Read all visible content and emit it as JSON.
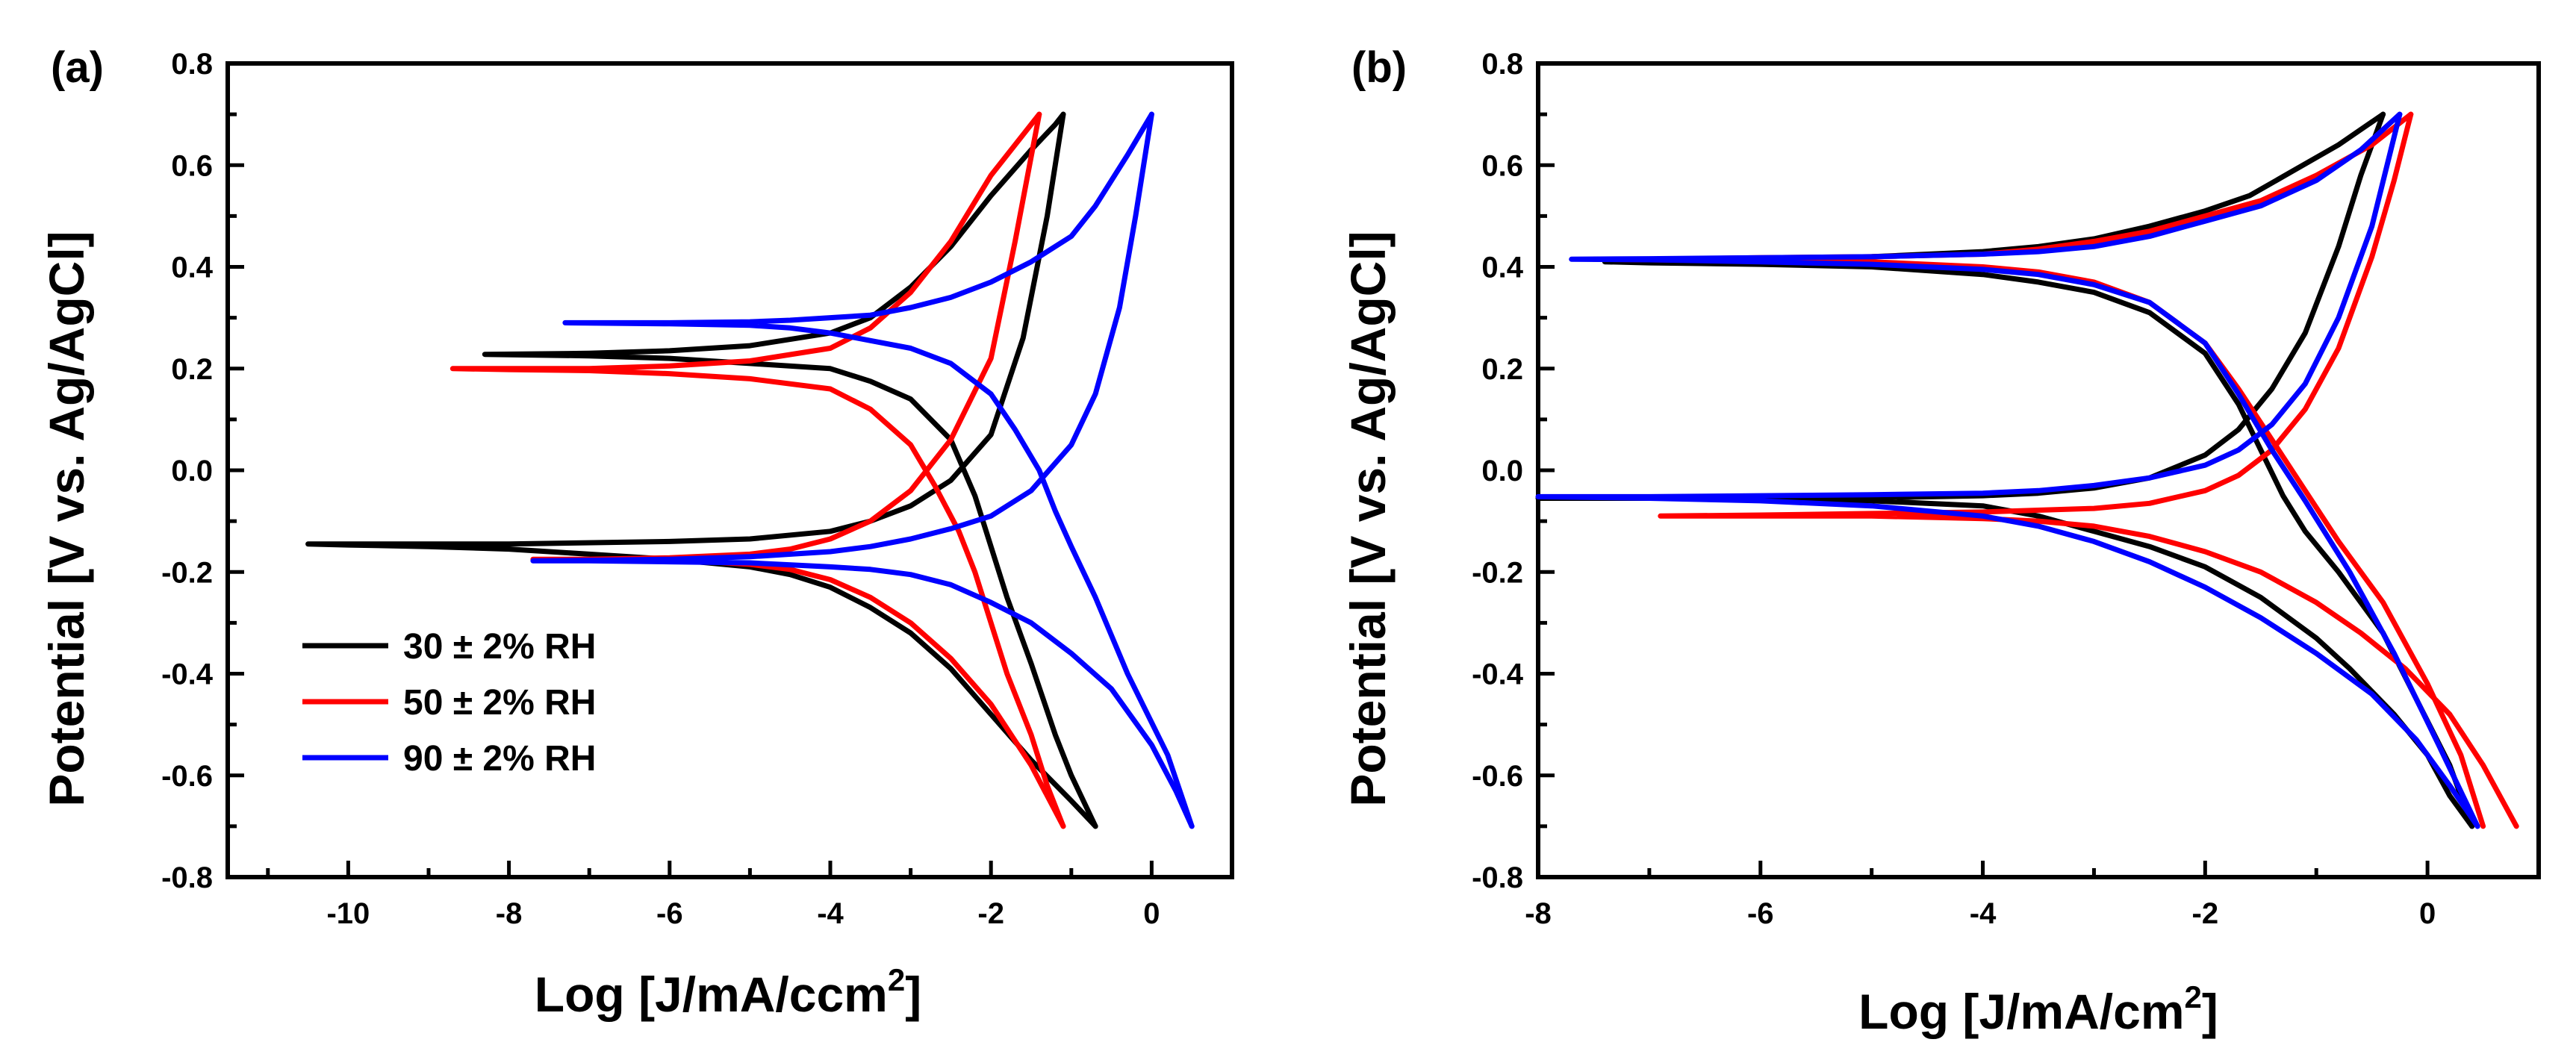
{
  "chart_data": [
    {
      "type": "line",
      "panel_label": "(a)",
      "xlabel": "Log [J/mA/ccm",
      "xlabel_sup": "2",
      "xlabel_end": "]",
      "ylabel": "Potential [V vs. Ag/AgCl]",
      "xlim": [
        -11.5,
        1
      ],
      "ylim": [
        -0.8,
        0.8
      ],
      "xticks": [
        -10,
        -8,
        -6,
        -4,
        -2,
        0
      ],
      "xtick_labels": [
        "-10",
        "-8",
        "-6",
        "-4",
        "-2",
        "0"
      ],
      "yticks": [
        -0.8,
        -0.6,
        -0.4,
        -0.2,
        0.0,
        0.2,
        0.4,
        0.6,
        0.8
      ],
      "ytick_labels": [
        "-0.8",
        "-0.6",
        "-0.4",
        "-0.2",
        "0.0",
        "0.2",
        "0.4",
        "0.6",
        "0.8"
      ],
      "legend": [
        {
          "label": "30 ± 2% RH",
          "color": "#000000"
        },
        {
          "label": "50 ± 2% RH",
          "color": "#ff0000"
        },
        {
          "label": "90 ± 2% RH",
          "color": "#0000ff"
        }
      ],
      "legend_position": "bottom-left",
      "series": [
        {
          "name": "30 ± 2% RH (forward)",
          "color": "#000000",
          "x": [
            -0.7,
            -1.0,
            -1.5,
            -2.0,
            -2.5,
            -3.0,
            -3.5,
            -4.0,
            -4.5,
            -5.0,
            -6.0,
            -7.0,
            -8.0,
            -9.0,
            -10.0,
            -10.5,
            -10.0,
            -8.0,
            -6.0,
            -5.0,
            -4.0,
            -3.5,
            -3.0,
            -2.5,
            -2.0,
            -1.6,
            -1.3,
            -1.1
          ],
          "y": [
            -0.7,
            -0.65,
            -0.57,
            -0.48,
            -0.39,
            -0.32,
            -0.27,
            -0.23,
            -0.205,
            -0.19,
            -0.175,
            -0.165,
            -0.155,
            -0.15,
            -0.147,
            -0.145,
            -0.145,
            -0.145,
            -0.14,
            -0.135,
            -0.12,
            -0.1,
            -0.07,
            -0.02,
            0.07,
            0.26,
            0.5,
            0.7
          ]
        },
        {
          "name": "30 ± 2% RH (reverse)",
          "color": "#000000",
          "x": [
            -1.1,
            -1.2,
            -1.5,
            -2.0,
            -2.5,
            -3.0,
            -3.5,
            -4.0,
            -5.0,
            -6.0,
            -7.0,
            -8.3,
            -7.0,
            -6.0,
            -5.0,
            -4.0,
            -3.5,
            -3.0,
            -2.5,
            -2.2,
            -2.0,
            -1.8,
            -1.5,
            -1.2,
            -1.0,
            -0.7
          ],
          "y": [
            0.7,
            0.68,
            0.63,
            0.54,
            0.44,
            0.36,
            0.3,
            0.27,
            0.245,
            0.235,
            0.23,
            0.228,
            0.225,
            0.22,
            0.21,
            0.2,
            0.175,
            0.14,
            0.06,
            -0.05,
            -0.15,
            -0.25,
            -0.38,
            -0.52,
            -0.6,
            -0.7
          ]
        },
        {
          "name": "50 ± 2% RH (forward)",
          "color": "#ff0000",
          "x": [
            -1.1,
            -1.5,
            -2.0,
            -2.5,
            -3.0,
            -3.5,
            -4.0,
            -4.5,
            -5.0,
            -5.5,
            -6.0,
            -7.0,
            -7.7,
            -7.0,
            -6.0,
            -5.0,
            -4.5,
            -4.0,
            -3.5,
            -3.0,
            -2.5,
            -2.0,
            -1.7,
            -1.4
          ],
          "y": [
            -0.7,
            -0.58,
            -0.46,
            -0.37,
            -0.3,
            -0.25,
            -0.215,
            -0.195,
            -0.185,
            -0.18,
            -0.178,
            -0.175,
            -0.175,
            -0.175,
            -0.172,
            -0.165,
            -0.155,
            -0.135,
            -0.1,
            -0.04,
            0.06,
            0.22,
            0.45,
            0.7
          ]
        },
        {
          "name": "50 ± 2% RH (reverse)",
          "color": "#ff0000",
          "x": [
            -1.4,
            -2.0,
            -2.5,
            -3.0,
            -3.5,
            -4.0,
            -5.0,
            -6.0,
            -7.0,
            -8.0,
            -8.7,
            -8.0,
            -7.0,
            -6.0,
            -5.0,
            -4.0,
            -3.5,
            -3.0,
            -2.7,
            -2.4,
            -2.2,
            -2.0,
            -1.8,
            -1.5,
            -1.3,
            -1.1
          ],
          "y": [
            0.7,
            0.58,
            0.45,
            0.35,
            0.28,
            0.24,
            0.215,
            0.205,
            0.2,
            0.2,
            0.2,
            0.198,
            0.196,
            0.19,
            0.18,
            0.16,
            0.12,
            0.05,
            -0.03,
            -0.12,
            -0.2,
            -0.3,
            -0.4,
            -0.52,
            -0.62,
            -0.7
          ]
        },
        {
          "name": "90 ± 2% RH (forward)",
          "color": "#0000ff",
          "x": [
            0.5,
            0.3,
            0.0,
            -0.5,
            -1.0,
            -1.5,
            -2.0,
            -2.5,
            -3.0,
            -3.5,
            -4.0,
            -5.0,
            -6.0,
            -7.0,
            -7.7,
            -7.0,
            -6.0,
            -5.0,
            -4.0,
            -3.5,
            -3.0,
            -2.5,
            -2.0,
            -1.5,
            -1.0,
            -0.7,
            -0.4,
            -0.2,
            0.0
          ],
          "y": [
            -0.7,
            -0.63,
            -0.54,
            -0.43,
            -0.36,
            -0.3,
            -0.26,
            -0.225,
            -0.205,
            -0.195,
            -0.19,
            -0.182,
            -0.18,
            -0.178,
            -0.178,
            -0.177,
            -0.175,
            -0.17,
            -0.16,
            -0.15,
            -0.135,
            -0.115,
            -0.09,
            -0.04,
            0.05,
            0.15,
            0.32,
            0.5,
            0.7
          ]
        },
        {
          "name": "90 ± 2% RH (reverse)",
          "color": "#0000ff",
          "x": [
            0.0,
            -0.3,
            -0.7,
            -1.0,
            -1.5,
            -2.0,
            -2.5,
            -3.0,
            -3.5,
            -4.0,
            -4.5,
            -5.0,
            -6.0,
            -7.3,
            -6.0,
            -5.0,
            -4.5,
            -4.0,
            -3.5,
            -3.0,
            -2.5,
            -2.0,
            -1.7,
            -1.4,
            -1.2,
            -1.0,
            -0.7,
            -0.3,
            0.2,
            0.5
          ],
          "y": [
            0.7,
            0.62,
            0.52,
            0.46,
            0.41,
            0.37,
            0.34,
            0.32,
            0.305,
            0.3,
            0.295,
            0.292,
            0.29,
            0.29,
            0.288,
            0.285,
            0.28,
            0.27,
            0.255,
            0.24,
            0.21,
            0.15,
            0.08,
            0.0,
            -0.08,
            -0.15,
            -0.25,
            -0.4,
            -0.56,
            -0.7
          ]
        }
      ]
    },
    {
      "type": "line",
      "panel_label": "(b)",
      "xlabel": "Log [J/mA/cm",
      "xlabel_sup": "2",
      "xlabel_end": "]",
      "ylabel": "Potential [V vs. Ag/AgCl]",
      "xlim": [
        -8,
        1
      ],
      "ylim": [
        -0.8,
        0.8
      ],
      "xticks": [
        -8,
        -6,
        -4,
        -2,
        0
      ],
      "xtick_labels": [
        "-8",
        "-6",
        "-4",
        "-2",
        "0"
      ],
      "yticks": [
        -0.8,
        -0.6,
        -0.4,
        -0.2,
        0.0,
        0.2,
        0.4,
        0.6,
        0.8
      ],
      "ytick_labels": [
        "-0.8",
        "-0.6",
        "-0.4",
        "-0.2",
        "0.0",
        "0.2",
        "0.4",
        "0.6",
        "0.8"
      ],
      "series": [
        {
          "name": "30 ± 2% RH (forward)",
          "color": "#000000",
          "x": [
            0.4,
            0.2,
            0.0,
            -0.3,
            -0.7,
            -1.0,
            -1.5,
            -2.0,
            -2.5,
            -3.0,
            -3.5,
            -4.0,
            -5.0,
            -6.0,
            -7.0,
            -8.0,
            -7.0,
            -6.0,
            -5.0,
            -4.0,
            -3.5,
            -3.0,
            -2.5,
            -2.0,
            -1.7,
            -1.4,
            -1.1,
            -0.8,
            -0.6,
            -0.4
          ],
          "y": [
            -0.7,
            -0.64,
            -0.56,
            -0.48,
            -0.39,
            -0.33,
            -0.25,
            -0.19,
            -0.15,
            -0.12,
            -0.09,
            -0.07,
            -0.06,
            -0.055,
            -0.055,
            -0.055,
            -0.055,
            -0.055,
            -0.054,
            -0.05,
            -0.045,
            -0.035,
            -0.015,
            0.03,
            0.08,
            0.16,
            0.27,
            0.44,
            0.58,
            0.7
          ]
        },
        {
          "name": "30 ± 2% RH (reverse)",
          "color": "#000000",
          "x": [
            -0.4,
            -0.8,
            -1.2,
            -1.6,
            -2.0,
            -2.5,
            -3.0,
            -3.5,
            -4.0,
            -5.0,
            -6.0,
            -7.0,
            -7.4,
            -7.0,
            -6.0,
            -5.0,
            -4.0,
            -3.5,
            -3.0,
            -2.5,
            -2.0,
            -1.7,
            -1.5,
            -1.3,
            -1.1,
            -0.8,
            -0.4,
            -0.1,
            0.2,
            0.4
          ],
          "y": [
            0.7,
            0.64,
            0.59,
            0.54,
            0.51,
            0.48,
            0.455,
            0.44,
            0.43,
            0.42,
            0.415,
            0.412,
            0.41,
            0.408,
            0.405,
            0.4,
            0.385,
            0.37,
            0.35,
            0.31,
            0.23,
            0.13,
            0.04,
            -0.05,
            -0.12,
            -0.2,
            -0.32,
            -0.45,
            -0.58,
            -0.7
          ]
        },
        {
          "name": "50 ± 2% RH (forward)",
          "color": "#ff0000",
          "x": [
            0.8,
            0.5,
            0.2,
            -0.2,
            -0.6,
            -1.0,
            -1.5,
            -2.0,
            -2.5,
            -3.0,
            -3.5,
            -4.0,
            -5.0,
            -6.0,
            -6.9,
            -6.0,
            -5.0,
            -4.0,
            -3.0,
            -2.5,
            -2.0,
            -1.7,
            -1.4,
            -1.1,
            -0.8,
            -0.5,
            -0.3,
            -0.15
          ],
          "y": [
            -0.7,
            -0.58,
            -0.48,
            -0.39,
            -0.32,
            -0.26,
            -0.2,
            -0.16,
            -0.13,
            -0.11,
            -0.1,
            -0.095,
            -0.09,
            -0.09,
            -0.09,
            -0.088,
            -0.085,
            -0.082,
            -0.075,
            -0.065,
            -0.04,
            -0.01,
            0.04,
            0.12,
            0.24,
            0.42,
            0.57,
            0.7
          ]
        },
        {
          "name": "50 ± 2% RH (reverse)",
          "color": "#ff0000",
          "x": [
            -0.15,
            -0.5,
            -1.0,
            -1.5,
            -2.0,
            -2.5,
            -3.0,
            -3.5,
            -4.0,
            -5.0,
            -6.0,
            -7.0,
            -7.5,
            -7.0,
            -6.0,
            -5.0,
            -4.0,
            -3.5,
            -3.0,
            -2.5,
            -2.0,
            -1.7,
            -1.4,
            -1.1,
            -0.8,
            -0.4,
            0.0,
            0.3,
            0.5
          ],
          "y": [
            0.7,
            0.64,
            0.58,
            0.53,
            0.5,
            0.47,
            0.45,
            0.435,
            0.425,
            0.42,
            0.418,
            0.415,
            0.415,
            0.414,
            0.412,
            0.41,
            0.4,
            0.39,
            0.37,
            0.33,
            0.25,
            0.16,
            0.06,
            -0.04,
            -0.14,
            -0.26,
            -0.42,
            -0.56,
            -0.7
          ]
        },
        {
          "name": "90 ± 2% RH (forward)",
          "color": "#0000ff",
          "x": [
            0.45,
            0.2,
            -0.1,
            -0.5,
            -1.0,
            -1.5,
            -2.0,
            -2.5,
            -3.0,
            -3.5,
            -4.0,
            -5.0,
            -6.0,
            -7.0,
            -8.0,
            -7.0,
            -6.0,
            -5.0,
            -4.0,
            -3.5,
            -3.0,
            -2.5,
            -2.0,
            -1.7,
            -1.4,
            -1.1,
            -0.8,
            -0.5,
            -0.25
          ],
          "y": [
            -0.7,
            -0.62,
            -0.53,
            -0.44,
            -0.36,
            -0.29,
            -0.23,
            -0.18,
            -0.14,
            -0.11,
            -0.09,
            -0.07,
            -0.06,
            -0.055,
            -0.052,
            -0.052,
            -0.05,
            -0.048,
            -0.045,
            -0.04,
            -0.03,
            -0.015,
            0.01,
            0.04,
            0.09,
            0.17,
            0.3,
            0.48,
            0.7
          ]
        },
        {
          "name": "90 ± 2% RH (reverse)",
          "color": "#0000ff",
          "x": [
            -0.25,
            -0.6,
            -1.0,
            -1.5,
            -2.0,
            -2.5,
            -3.0,
            -3.5,
            -4.0,
            -5.0,
            -6.0,
            -7.0,
            -7.7,
            -7.0,
            -6.0,
            -5.0,
            -4.0,
            -3.5,
            -3.0,
            -2.5,
            -2.0,
            -1.7,
            -1.4,
            -1.1,
            -0.7,
            -0.3,
            0.1,
            0.45
          ],
          "y": [
            0.7,
            0.63,
            0.57,
            0.52,
            0.49,
            0.46,
            0.44,
            0.43,
            0.425,
            0.42,
            0.418,
            0.416,
            0.415,
            0.414,
            0.41,
            0.405,
            0.395,
            0.385,
            0.365,
            0.33,
            0.25,
            0.15,
            0.04,
            -0.06,
            -0.2,
            -0.36,
            -0.54,
            -0.7
          ]
        }
      ]
    }
  ]
}
